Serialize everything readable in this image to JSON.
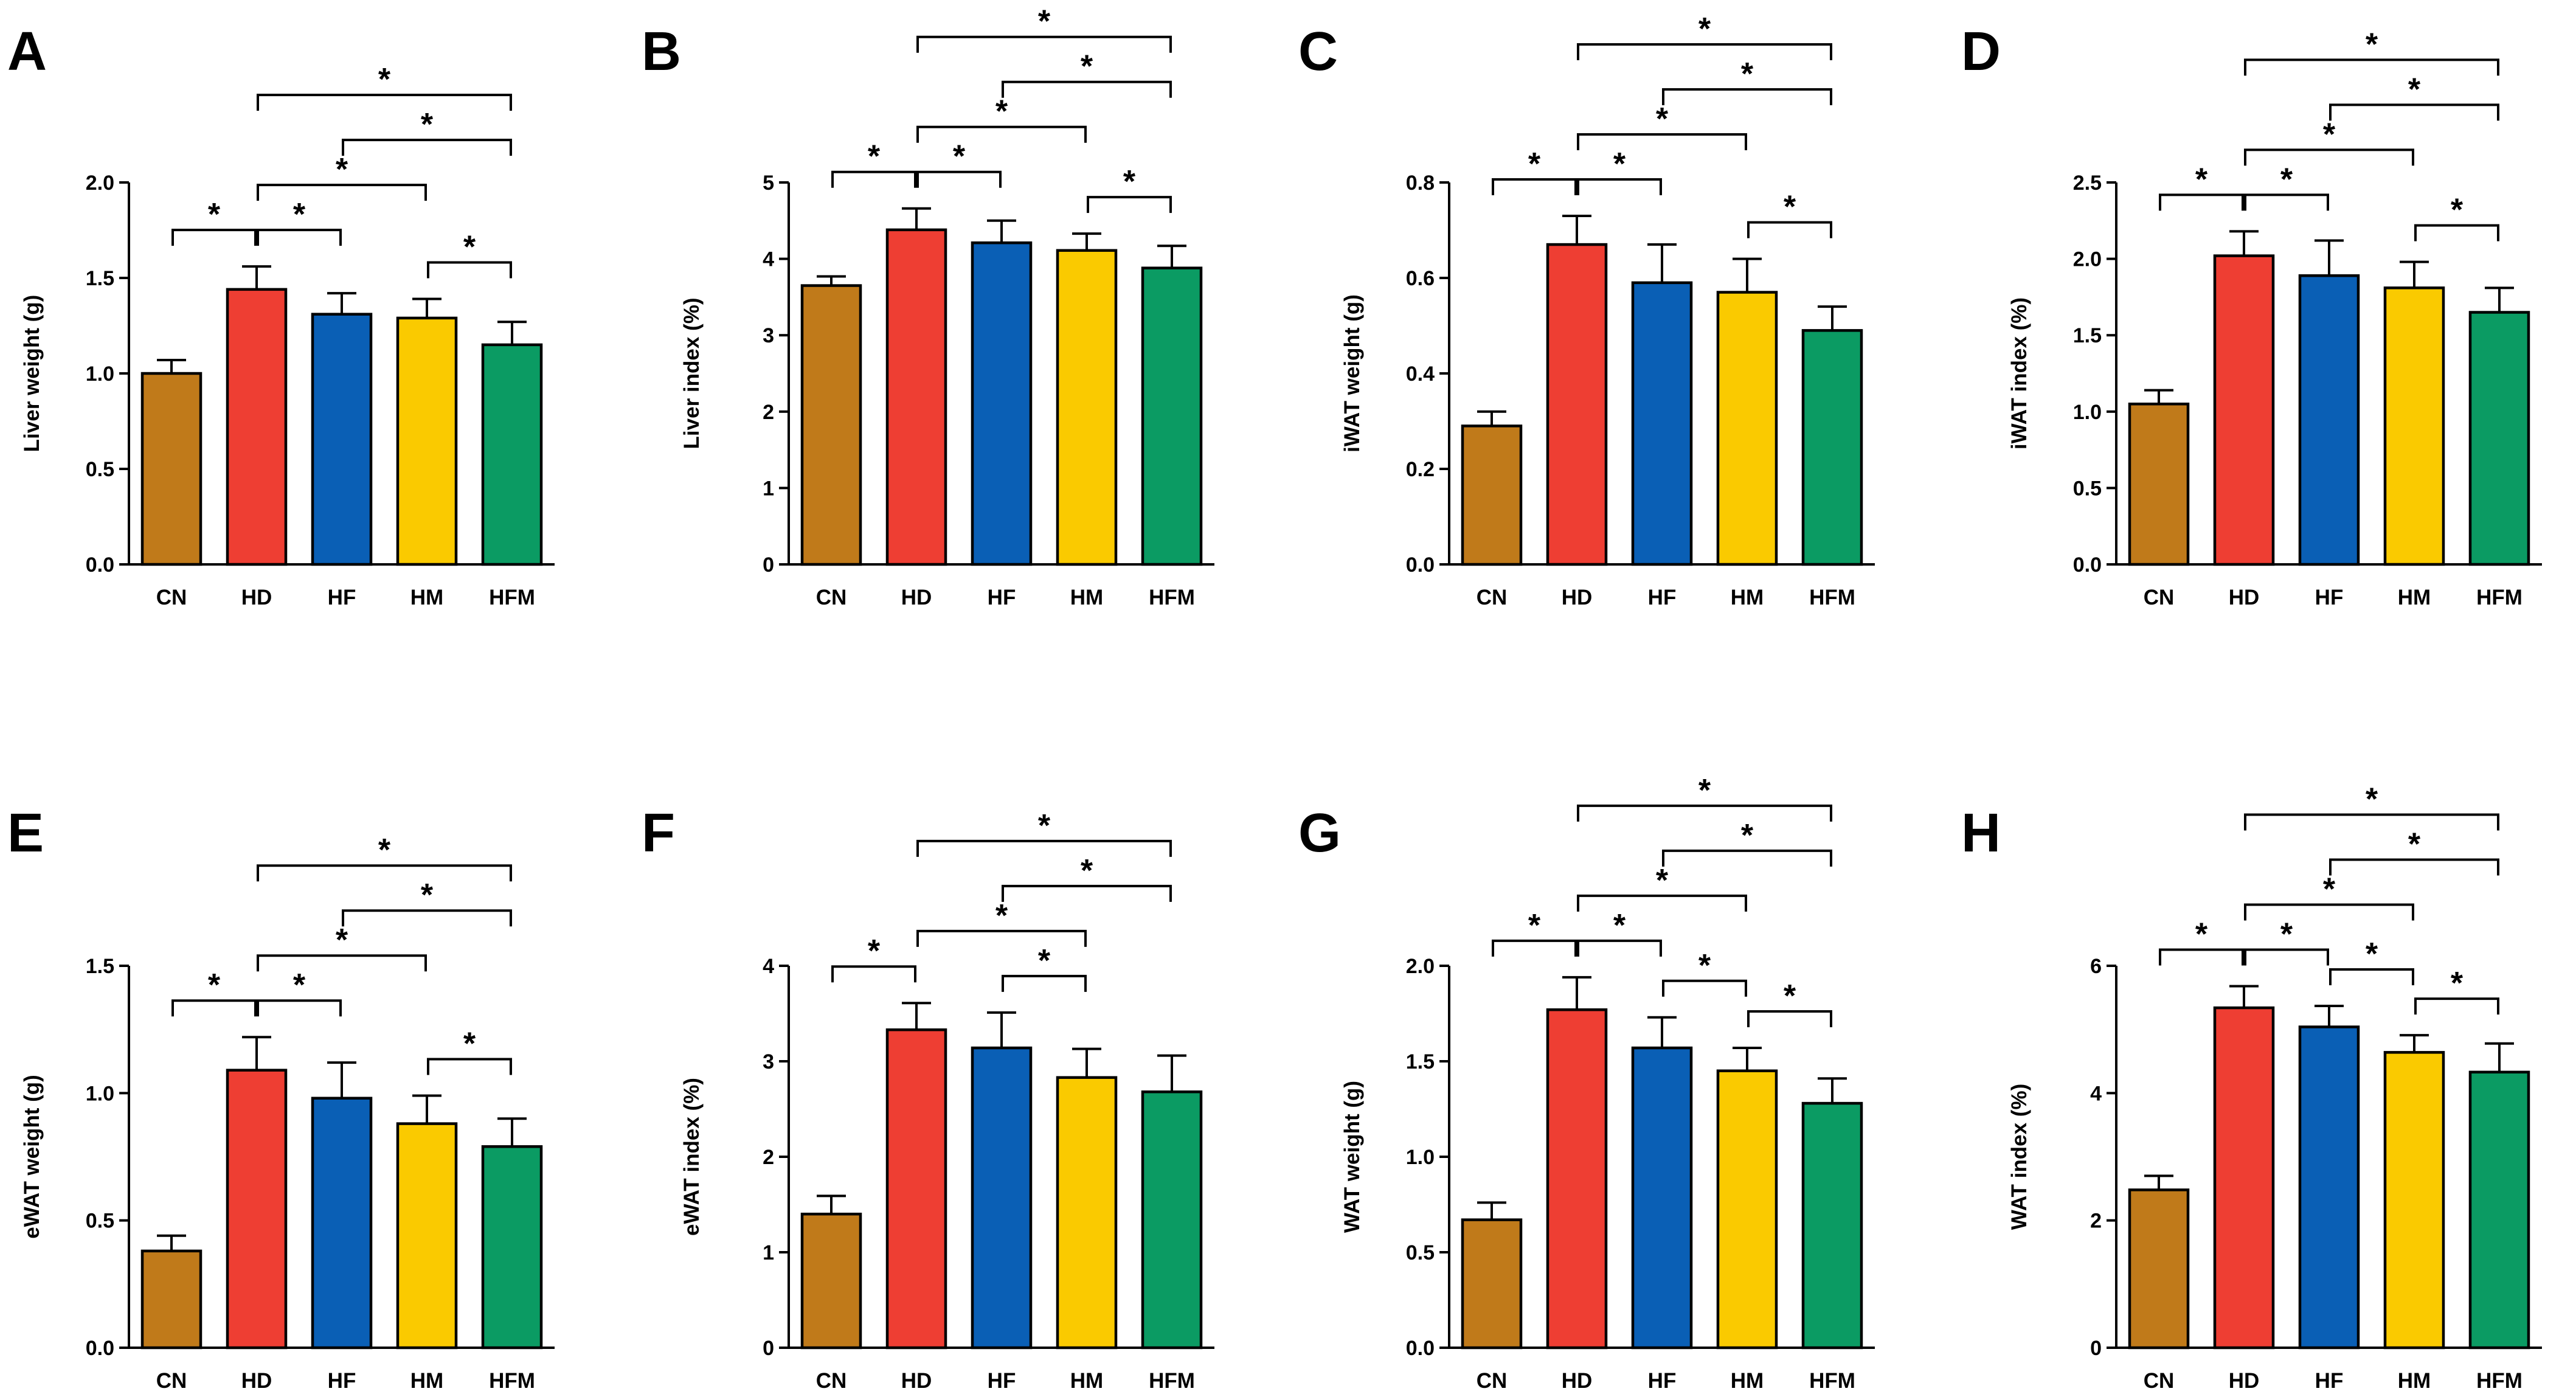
{
  "chart_data": [
    {
      "panel": "A",
      "type": "bar",
      "ylabel": "Liver weight (g)",
      "categories": [
        "CN",
        "HD",
        "HF",
        "HM",
        "HFM"
      ],
      "values": [
        1.0,
        1.44,
        1.31,
        1.29,
        1.15
      ],
      "errors": [
        0.07,
        0.12,
        0.11,
        0.1,
        0.12
      ],
      "ylim": [
        0,
        2.0
      ],
      "yticks": [
        {
          "v": 0,
          "t": "0.0"
        },
        {
          "v": 0.5,
          "t": "0.5"
        },
        {
          "v": 1.0,
          "t": "1.0"
        },
        {
          "v": 1.5,
          "t": "1.5"
        },
        {
          "v": 2.0,
          "t": "2.0"
        }
      ],
      "significance": [
        {
          "from": 0,
          "to": 1,
          "label": "*"
        },
        {
          "from": 1,
          "to": 2,
          "label": "*"
        },
        {
          "from": 2,
          "to": 4,
          "label": "*"
        },
        {
          "from": 3,
          "to": 4,
          "label": "*"
        },
        {
          "from": 1,
          "to": 3,
          "label": "*"
        },
        {
          "from": 1,
          "to": 4,
          "label": "*"
        }
      ]
    },
    {
      "panel": "B",
      "type": "bar",
      "ylabel": "Liver index (%)",
      "categories": [
        "CN",
        "HD",
        "HF",
        "HM",
        "HFM"
      ],
      "values": [
        3.65,
        4.38,
        4.21,
        4.11,
        3.88
      ],
      "errors": [
        0.12,
        0.28,
        0.29,
        0.22,
        0.29
      ],
      "ylim": [
        0,
        5
      ],
      "yticks": [
        {
          "v": 0,
          "t": "0"
        },
        {
          "v": 1,
          "t": "1"
        },
        {
          "v": 2,
          "t": "2"
        },
        {
          "v": 3,
          "t": "3"
        },
        {
          "v": 4,
          "t": "4"
        },
        {
          "v": 5,
          "t": "5"
        }
      ],
      "significance": [
        {
          "from": 0,
          "to": 1,
          "label": "*"
        },
        {
          "from": 1,
          "to": 2,
          "label": "*"
        },
        {
          "from": 2,
          "to": 4,
          "label": "*"
        },
        {
          "from": 3,
          "to": 4,
          "label": "*"
        },
        {
          "from": 1,
          "to": 3,
          "label": "*"
        },
        {
          "from": 1,
          "to": 4,
          "label": "*"
        }
      ]
    },
    {
      "panel": "C",
      "type": "bar",
      "ylabel": "iWAT weight (g)",
      "categories": [
        "CN",
        "HD",
        "HF",
        "HM",
        "HFM"
      ],
      "values": [
        0.29,
        0.67,
        0.59,
        0.57,
        0.49
      ],
      "errors": [
        0.03,
        0.06,
        0.08,
        0.07,
        0.05
      ],
      "ylim": [
        0,
        0.8
      ],
      "yticks": [
        {
          "v": 0,
          "t": "0.0"
        },
        {
          "v": 0.2,
          "t": "0.2"
        },
        {
          "v": 0.4,
          "t": "0.4"
        },
        {
          "v": 0.6,
          "t": "0.6"
        },
        {
          "v": 0.8,
          "t": "0.8"
        }
      ],
      "significance": [
        {
          "from": 0,
          "to": 1,
          "label": "*"
        },
        {
          "from": 1,
          "to": 2,
          "label": "*"
        },
        {
          "from": 2,
          "to": 4,
          "label": "*"
        },
        {
          "from": 3,
          "to": 4,
          "label": "*"
        },
        {
          "from": 1,
          "to": 3,
          "label": "*"
        },
        {
          "from": 1,
          "to": 4,
          "label": "*"
        }
      ]
    },
    {
      "panel": "D",
      "type": "bar",
      "ylabel": "iWAT index (%)",
      "categories": [
        "CN",
        "HD",
        "HF",
        "HM",
        "HFM"
      ],
      "values": [
        1.05,
        2.02,
        1.89,
        1.81,
        1.65
      ],
      "errors": [
        0.09,
        0.16,
        0.23,
        0.17,
        0.16
      ],
      "ylim": [
        0,
        2.5
      ],
      "yticks": [
        {
          "v": 0,
          "t": "0.0"
        },
        {
          "v": 0.5,
          "t": "0.5"
        },
        {
          "v": 1.0,
          "t": "1.0"
        },
        {
          "v": 1.5,
          "t": "1.5"
        },
        {
          "v": 2.0,
          "t": "2.0"
        },
        {
          "v": 2.5,
          "t": "2.5"
        }
      ],
      "significance": [
        {
          "from": 0,
          "to": 1,
          "label": "*"
        },
        {
          "from": 1,
          "to": 2,
          "label": "*"
        },
        {
          "from": 2,
          "to": 4,
          "label": "*"
        },
        {
          "from": 3,
          "to": 4,
          "label": "*"
        },
        {
          "from": 1,
          "to": 3,
          "label": "*"
        },
        {
          "from": 1,
          "to": 4,
          "label": "*"
        }
      ]
    },
    {
      "panel": "E",
      "type": "bar",
      "ylabel": "eWAT  weight (g)",
      "categories": [
        "CN",
        "HD",
        "HF",
        "HM",
        "HFM"
      ],
      "values": [
        0.38,
        1.09,
        0.98,
        0.88,
        0.79
      ],
      "errors": [
        0.06,
        0.13,
        0.14,
        0.11,
        0.11
      ],
      "ylim": [
        0,
        1.5
      ],
      "yticks": [
        {
          "v": 0,
          "t": "0.0"
        },
        {
          "v": 0.5,
          "t": "0.5"
        },
        {
          "v": 1.0,
          "t": "1.0"
        },
        {
          "v": 1.5,
          "t": "1.5"
        }
      ],
      "significance": [
        {
          "from": 0,
          "to": 1,
          "label": "*"
        },
        {
          "from": 1,
          "to": 2,
          "label": "*"
        },
        {
          "from": 2,
          "to": 4,
          "label": "*"
        },
        {
          "from": 3,
          "to": 4,
          "label": "*"
        },
        {
          "from": 1,
          "to": 3,
          "label": "*"
        },
        {
          "from": 1,
          "to": 4,
          "label": "*"
        }
      ]
    },
    {
      "panel": "F",
      "type": "bar",
      "ylabel": "eWAT index (%)",
      "categories": [
        "CN",
        "HD",
        "HF",
        "HM",
        "HFM"
      ],
      "values": [
        1.4,
        3.33,
        3.14,
        2.83,
        2.68
      ],
      "errors": [
        0.19,
        0.28,
        0.37,
        0.3,
        0.38
      ],
      "ylim": [
        0,
        4
      ],
      "yticks": [
        {
          "v": 0,
          "t": "0"
        },
        {
          "v": 1,
          "t": "1"
        },
        {
          "v": 2,
          "t": "2"
        },
        {
          "v": 3,
          "t": "3"
        },
        {
          "v": 4,
          "t": "4"
        }
      ],
      "significance": [
        {
          "from": 0,
          "to": 1,
          "label": "*"
        },
        {
          "from": 2,
          "to": 3,
          "label": "*"
        },
        {
          "from": 1,
          "to": 3,
          "label": "*"
        },
        {
          "from": 2,
          "to": 4,
          "label": "*"
        },
        {
          "from": 1,
          "to": 4,
          "label": "*"
        }
      ]
    },
    {
      "panel": "G",
      "type": "bar",
      "ylabel": "WAT weight (g)",
      "categories": [
        "CN",
        "HD",
        "HF",
        "HM",
        "HFM"
      ],
      "values": [
        0.67,
        1.77,
        1.57,
        1.45,
        1.28
      ],
      "errors": [
        0.09,
        0.17,
        0.16,
        0.12,
        0.13
      ],
      "ylim": [
        0,
        2.0
      ],
      "yticks": [
        {
          "v": 0,
          "t": "0.0"
        },
        {
          "v": 0.5,
          "t": "0.5"
        },
        {
          "v": 1.0,
          "t": "1.0"
        },
        {
          "v": 1.5,
          "t": "1.5"
        },
        {
          "v": 2.0,
          "t": "2.0"
        }
      ],
      "significance": [
        {
          "from": 2,
          "to": 3,
          "label": "*"
        },
        {
          "from": 3,
          "to": 4,
          "label": "*"
        },
        {
          "from": 0,
          "to": 1,
          "label": "*"
        },
        {
          "from": 1,
          "to": 2,
          "label": "*"
        },
        {
          "from": 2,
          "to": 4,
          "label": "*"
        },
        {
          "from": 1,
          "to": 3,
          "label": "*"
        },
        {
          "from": 1,
          "to": 4,
          "label": "*"
        }
      ]
    },
    {
      "panel": "H",
      "type": "bar",
      "ylabel": "WAT index (%)",
      "categories": [
        "CN",
        "HD",
        "HF",
        "HM",
        "HFM"
      ],
      "values": [
        2.48,
        5.34,
        5.04,
        4.64,
        4.33
      ],
      "errors": [
        0.22,
        0.34,
        0.33,
        0.27,
        0.45
      ],
      "ylim": [
        0,
        6
      ],
      "yticks": [
        {
          "v": 0,
          "t": "0"
        },
        {
          "v": 2,
          "t": "2"
        },
        {
          "v": 4,
          "t": "4"
        },
        {
          "v": 6,
          "t": "6"
        }
      ],
      "significance": [
        {
          "from": 2,
          "to": 3,
          "label": "*"
        },
        {
          "from": 3,
          "to": 4,
          "label": "*"
        },
        {
          "from": 0,
          "to": 1,
          "label": "*"
        },
        {
          "from": 1,
          "to": 2,
          "label": "*"
        },
        {
          "from": 2,
          "to": 4,
          "label": "*"
        },
        {
          "from": 1,
          "to": 3,
          "label": "*"
        },
        {
          "from": 1,
          "to": 4,
          "label": "*"
        }
      ]
    }
  ],
  "colors": {
    "CN": "#C07A1A",
    "HD": "#EE3E33",
    "HF": "#0A5FB5",
    "HM": "#FACA00",
    "HFM": "#0B9B63"
  }
}
